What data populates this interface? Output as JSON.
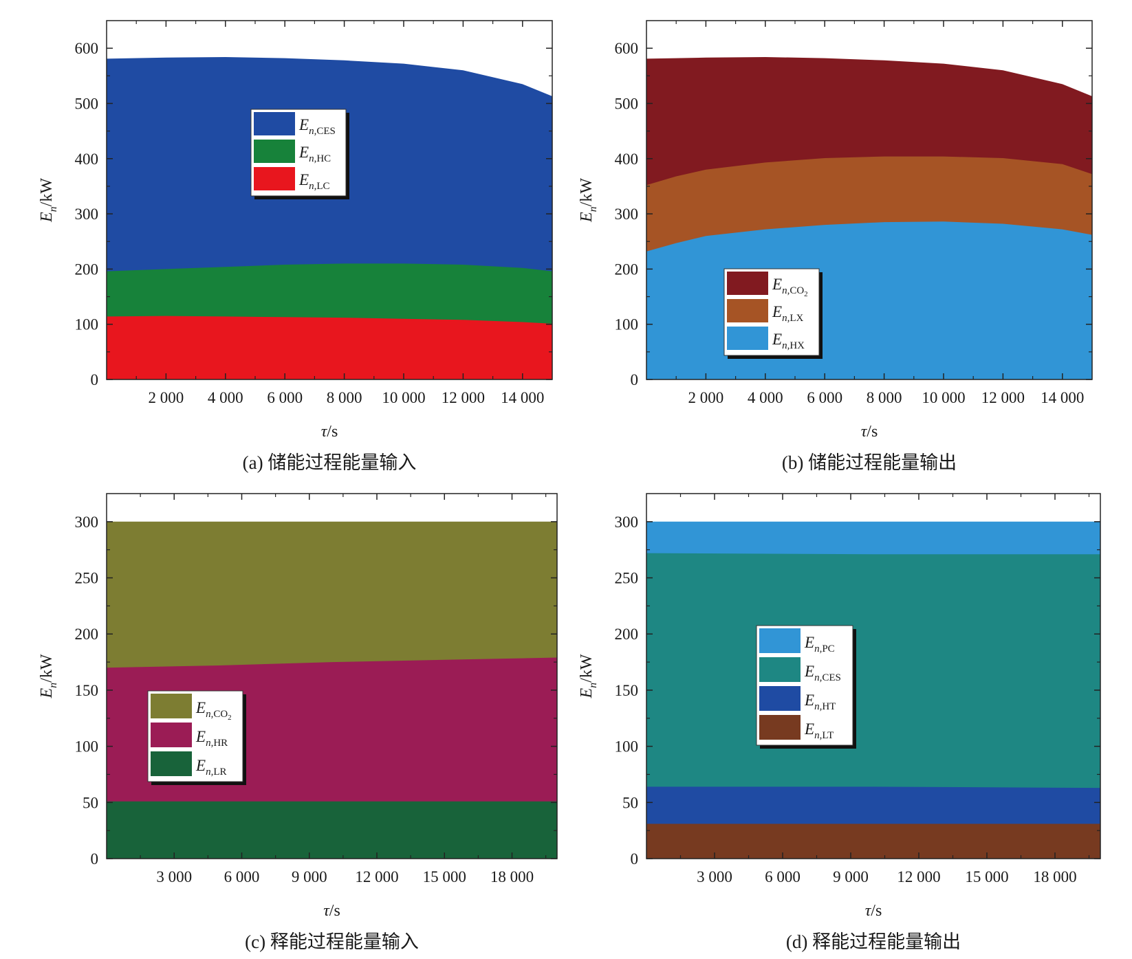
{
  "figure": {
    "ylabel": {
      "main": "E",
      "sub": "n",
      "unit": "/kW"
    },
    "xlabel": {
      "main": "τ",
      "unit": "/s"
    }
  },
  "chart_data": [
    {
      "id": "a",
      "type": "area",
      "caption": "(a) 储能过程能量输入",
      "xlabel": "τ/s",
      "ylabel": "En/kW",
      "xlim": [
        0,
        15000
      ],
      "ylim": [
        0,
        650
      ],
      "xticks": [
        2000,
        4000,
        6000,
        8000,
        10000,
        12000,
        14000
      ],
      "xtick_labels": [
        "2 000",
        "4 000",
        "6 000",
        "8 000",
        "10 000",
        "12 000",
        "14 000"
      ],
      "yticks": [
        0,
        100,
        200,
        300,
        400,
        500,
        600
      ],
      "ytick_labels": [
        "0",
        "100",
        "200",
        "300",
        "400",
        "500",
        "600"
      ],
      "x": [
        0,
        2000,
        4000,
        6000,
        8000,
        10000,
        12000,
        14000,
        15000
      ],
      "series": [
        {
          "name": "E",
          "sub": "n,CES",
          "color": "#1f4ba3",
          "top": [
            581,
            583,
            584,
            582,
            578,
            572,
            560,
            535,
            513
          ]
        },
        {
          "name": "E",
          "sub": "n,HC",
          "color": "#17823a",
          "top": [
            196,
            200,
            204,
            208,
            210,
            210,
            208,
            202,
            196
          ]
        },
        {
          "name": "E",
          "sub": "n,LC",
          "color": "#e8161e",
          "top": [
            114,
            115,
            114,
            113,
            112,
            110,
            108,
            104,
            101
          ]
        }
      ],
      "legend_position": "upper-center"
    },
    {
      "id": "b",
      "type": "area",
      "caption": "(b) 储能过程能量输出",
      "xlabel": "τ/s",
      "ylabel": "En/kW",
      "xlim": [
        0,
        15000
      ],
      "ylim": [
        0,
        650
      ],
      "xticks": [
        2000,
        4000,
        6000,
        8000,
        10000,
        12000,
        14000
      ],
      "xtick_labels": [
        "2 000",
        "4 000",
        "6 000",
        "8 000",
        "10 000",
        "12 000",
        "14 000"
      ],
      "yticks": [
        0,
        100,
        200,
        300,
        400,
        500,
        600
      ],
      "ytick_labels": [
        "0",
        "100",
        "200",
        "300",
        "400",
        "500",
        "600"
      ],
      "x": [
        0,
        1000,
        2000,
        4000,
        6000,
        8000,
        10000,
        12000,
        14000,
        15000
      ],
      "series": [
        {
          "name": "E",
          "sub": "n,CO",
          "sub2": "2",
          "color": "#811a20",
          "top": [
            581,
            582,
            583,
            584,
            582,
            578,
            572,
            560,
            535,
            513
          ]
        },
        {
          "name": "E",
          "sub": "n,LX",
          "color": "#a65425",
          "top": [
            352,
            368,
            380,
            393,
            401,
            404,
            404,
            401,
            390,
            372
          ]
        },
        {
          "name": "E",
          "sub": "n,HX",
          "color": "#3195d6",
          "top": [
            232,
            247,
            260,
            272,
            280,
            285,
            286,
            282,
            272,
            262
          ]
        }
      ],
      "legend_position": "lower-left"
    },
    {
      "id": "c",
      "type": "area",
      "caption": "(c) 释能过程能量输入",
      "xlabel": "τ/s",
      "ylabel": "En/kW",
      "xlim": [
        0,
        20000
      ],
      "ylim": [
        0,
        325
      ],
      "xticks": [
        3000,
        6000,
        9000,
        12000,
        15000,
        18000
      ],
      "xtick_labels": [
        "3 000",
        "6 000",
        "9 000",
        "12 000",
        "15 000",
        "18 000"
      ],
      "yticks": [
        0,
        50,
        100,
        150,
        200,
        250,
        300
      ],
      "ytick_labels": [
        "0",
        "50",
        "100",
        "150",
        "200",
        "250",
        "300"
      ],
      "x": [
        0,
        5000,
        10000,
        15000,
        20000
      ],
      "series": [
        {
          "name": "E",
          "sub": "n,CO",
          "sub2": "2",
          "color": "#7d7d32",
          "top": [
            300,
            300,
            300,
            300,
            300
          ]
        },
        {
          "name": "E",
          "sub": "n,HR",
          "color": "#9b1c55",
          "top": [
            170,
            172,
            175,
            177,
            179
          ]
        },
        {
          "name": "E",
          "sub": "n,LR",
          "color": "#18633a",
          "top": [
            51,
            51,
            51,
            51,
            51
          ]
        }
      ],
      "legend_position": "lower-left"
    },
    {
      "id": "d",
      "type": "area",
      "caption": "(d) 释能过程能量输出",
      "xlabel": "τ/s",
      "ylabel": "En/kW",
      "xlim": [
        0,
        20000
      ],
      "ylim": [
        0,
        325
      ],
      "xticks": [
        3000,
        6000,
        9000,
        12000,
        15000,
        18000
      ],
      "xtick_labels": [
        "3 000",
        "6 000",
        "9 000",
        "12 000",
        "15 000",
        "18 000"
      ],
      "yticks": [
        0,
        50,
        100,
        150,
        200,
        250,
        300
      ],
      "ytick_labels": [
        "0",
        "50",
        "100",
        "150",
        "200",
        "250",
        "300"
      ],
      "x": [
        0,
        10000,
        20000
      ],
      "series": [
        {
          "name": "E",
          "sub": "n,PC",
          "color": "#3195d6",
          "top": [
            300,
            300,
            300
          ]
        },
        {
          "name": "E",
          "sub": "n,CES",
          "color": "#1e8783",
          "top": [
            272,
            271,
            271
          ]
        },
        {
          "name": "E",
          "sub": "n,HT",
          "color": "#1f4ba3",
          "top": [
            64,
            64,
            63
          ]
        },
        {
          "name": "E",
          "sub": "n,LT",
          "color": "#773a20",
          "top": [
            31,
            31,
            31
          ]
        }
      ],
      "legend_position": "center-left"
    }
  ]
}
